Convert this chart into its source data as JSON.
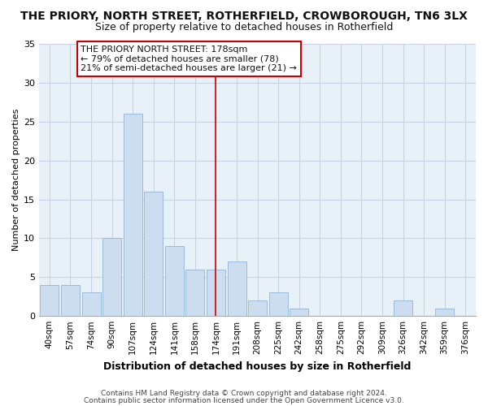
{
  "title": "THE PRIORY, NORTH STREET, ROTHERFIELD, CROWBOROUGH, TN6 3LX",
  "subtitle": "Size of property relative to detached houses in Rotherfield",
  "xlabel": "Distribution of detached houses by size in Rotherfield",
  "ylabel": "Number of detached properties",
  "bar_labels": [
    "40sqm",
    "57sqm",
    "74sqm",
    "90sqm",
    "107sqm",
    "124sqm",
    "141sqm",
    "158sqm",
    "174sqm",
    "191sqm",
    "208sqm",
    "225sqm",
    "242sqm",
    "258sqm",
    "275sqm",
    "292sqm",
    "309sqm",
    "326sqm",
    "342sqm",
    "359sqm",
    "376sqm"
  ],
  "bar_heights": [
    4,
    4,
    3,
    10,
    26,
    16,
    9,
    6,
    6,
    7,
    2,
    3,
    1,
    0,
    0,
    0,
    0,
    2,
    0,
    1,
    0
  ],
  "bar_color": "#ccddf0",
  "bar_edgecolor": "#99bbdd",
  "vline_x": 8,
  "vline_color": "#cc0000",
  "annotation_title": "THE PRIORY NORTH STREET: 178sqm",
  "annotation_line1": "← 79% of detached houses are smaller (78)",
  "annotation_line2": "21% of semi-detached houses are larger (21) →",
  "annotation_box_color": "#ffffff",
  "annotation_box_edgecolor": "#cc0000",
  "ylim": [
    0,
    35
  ],
  "yticks": [
    0,
    5,
    10,
    15,
    20,
    25,
    30,
    35
  ],
  "footer1": "Contains HM Land Registry data © Crown copyright and database right 2024.",
  "footer2": "Contains public sector information licensed under the Open Government Licence v3.0.",
  "background_color": "#ffffff",
  "plot_bg_color": "#e8f0f8",
  "grid_color": "#c8d4e4",
  "title_fontsize": 10,
  "subtitle_fontsize": 9,
  "ylabel_fontsize": 8,
  "xlabel_fontsize": 9,
  "tick_fontsize": 7.5,
  "ytick_fontsize": 8,
  "footer_fontsize": 6.5,
  "ann_fontsize": 8
}
